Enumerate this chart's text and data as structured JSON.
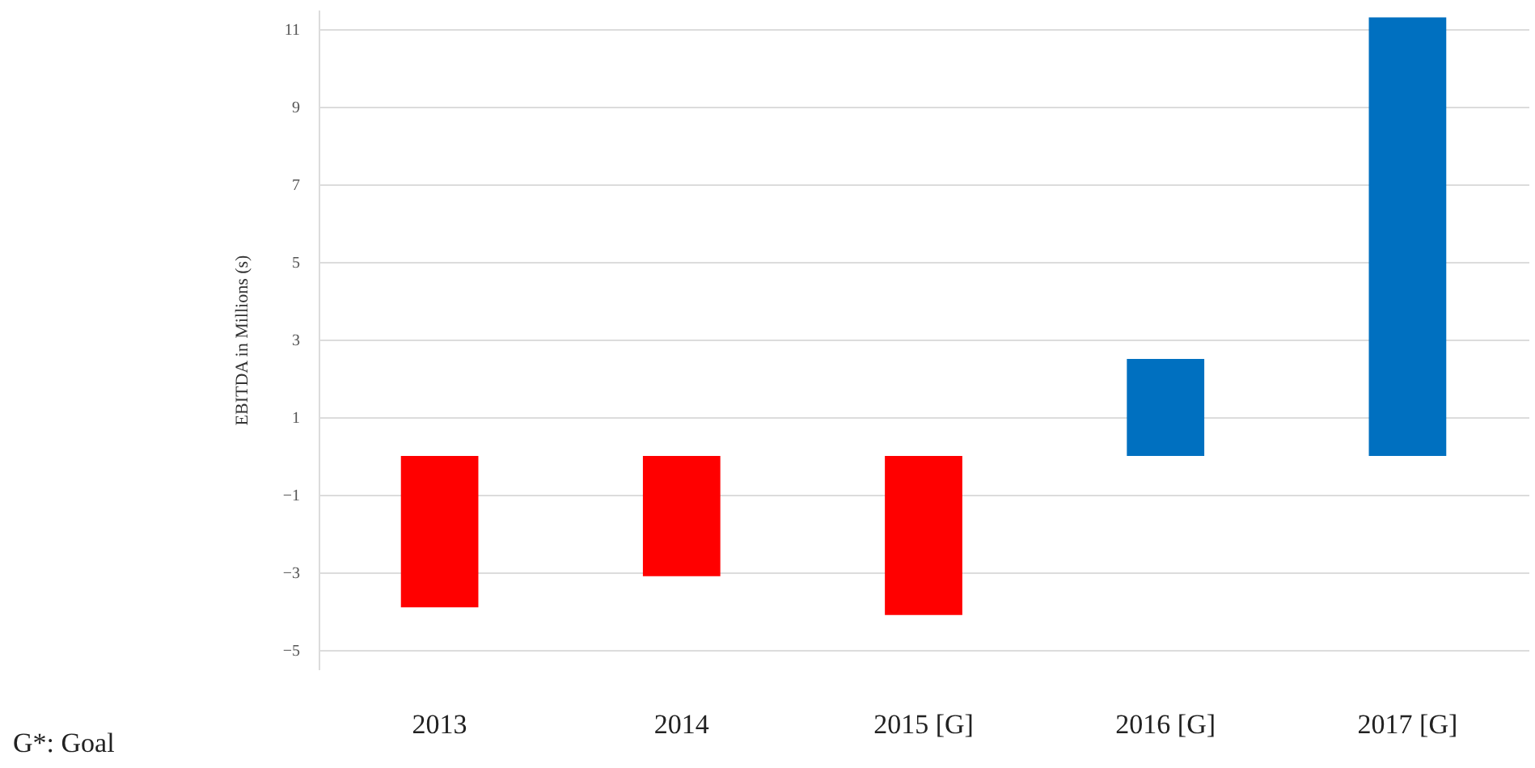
{
  "chart_data": {
    "type": "bar",
    "ylabel": "EBITDA in Millions (s)",
    "categories": [
      "2013",
      "2014",
      "2015 [G]",
      "2016 [G]",
      "2017 [G]"
    ],
    "values": [
      -3.9,
      -3.1,
      -4.1,
      2.5,
      11.3
    ],
    "colors": [
      "#ff0000",
      "#ff0000",
      "#ff0000",
      "#0070c0",
      "#0070c0"
    ],
    "ylim": [
      -5.5,
      11.5
    ],
    "yticks": [
      -5,
      -3,
      -1,
      1,
      3,
      5,
      7,
      9,
      11
    ],
    "grid": "y",
    "annotations": [
      "G*: Goal"
    ]
  }
}
